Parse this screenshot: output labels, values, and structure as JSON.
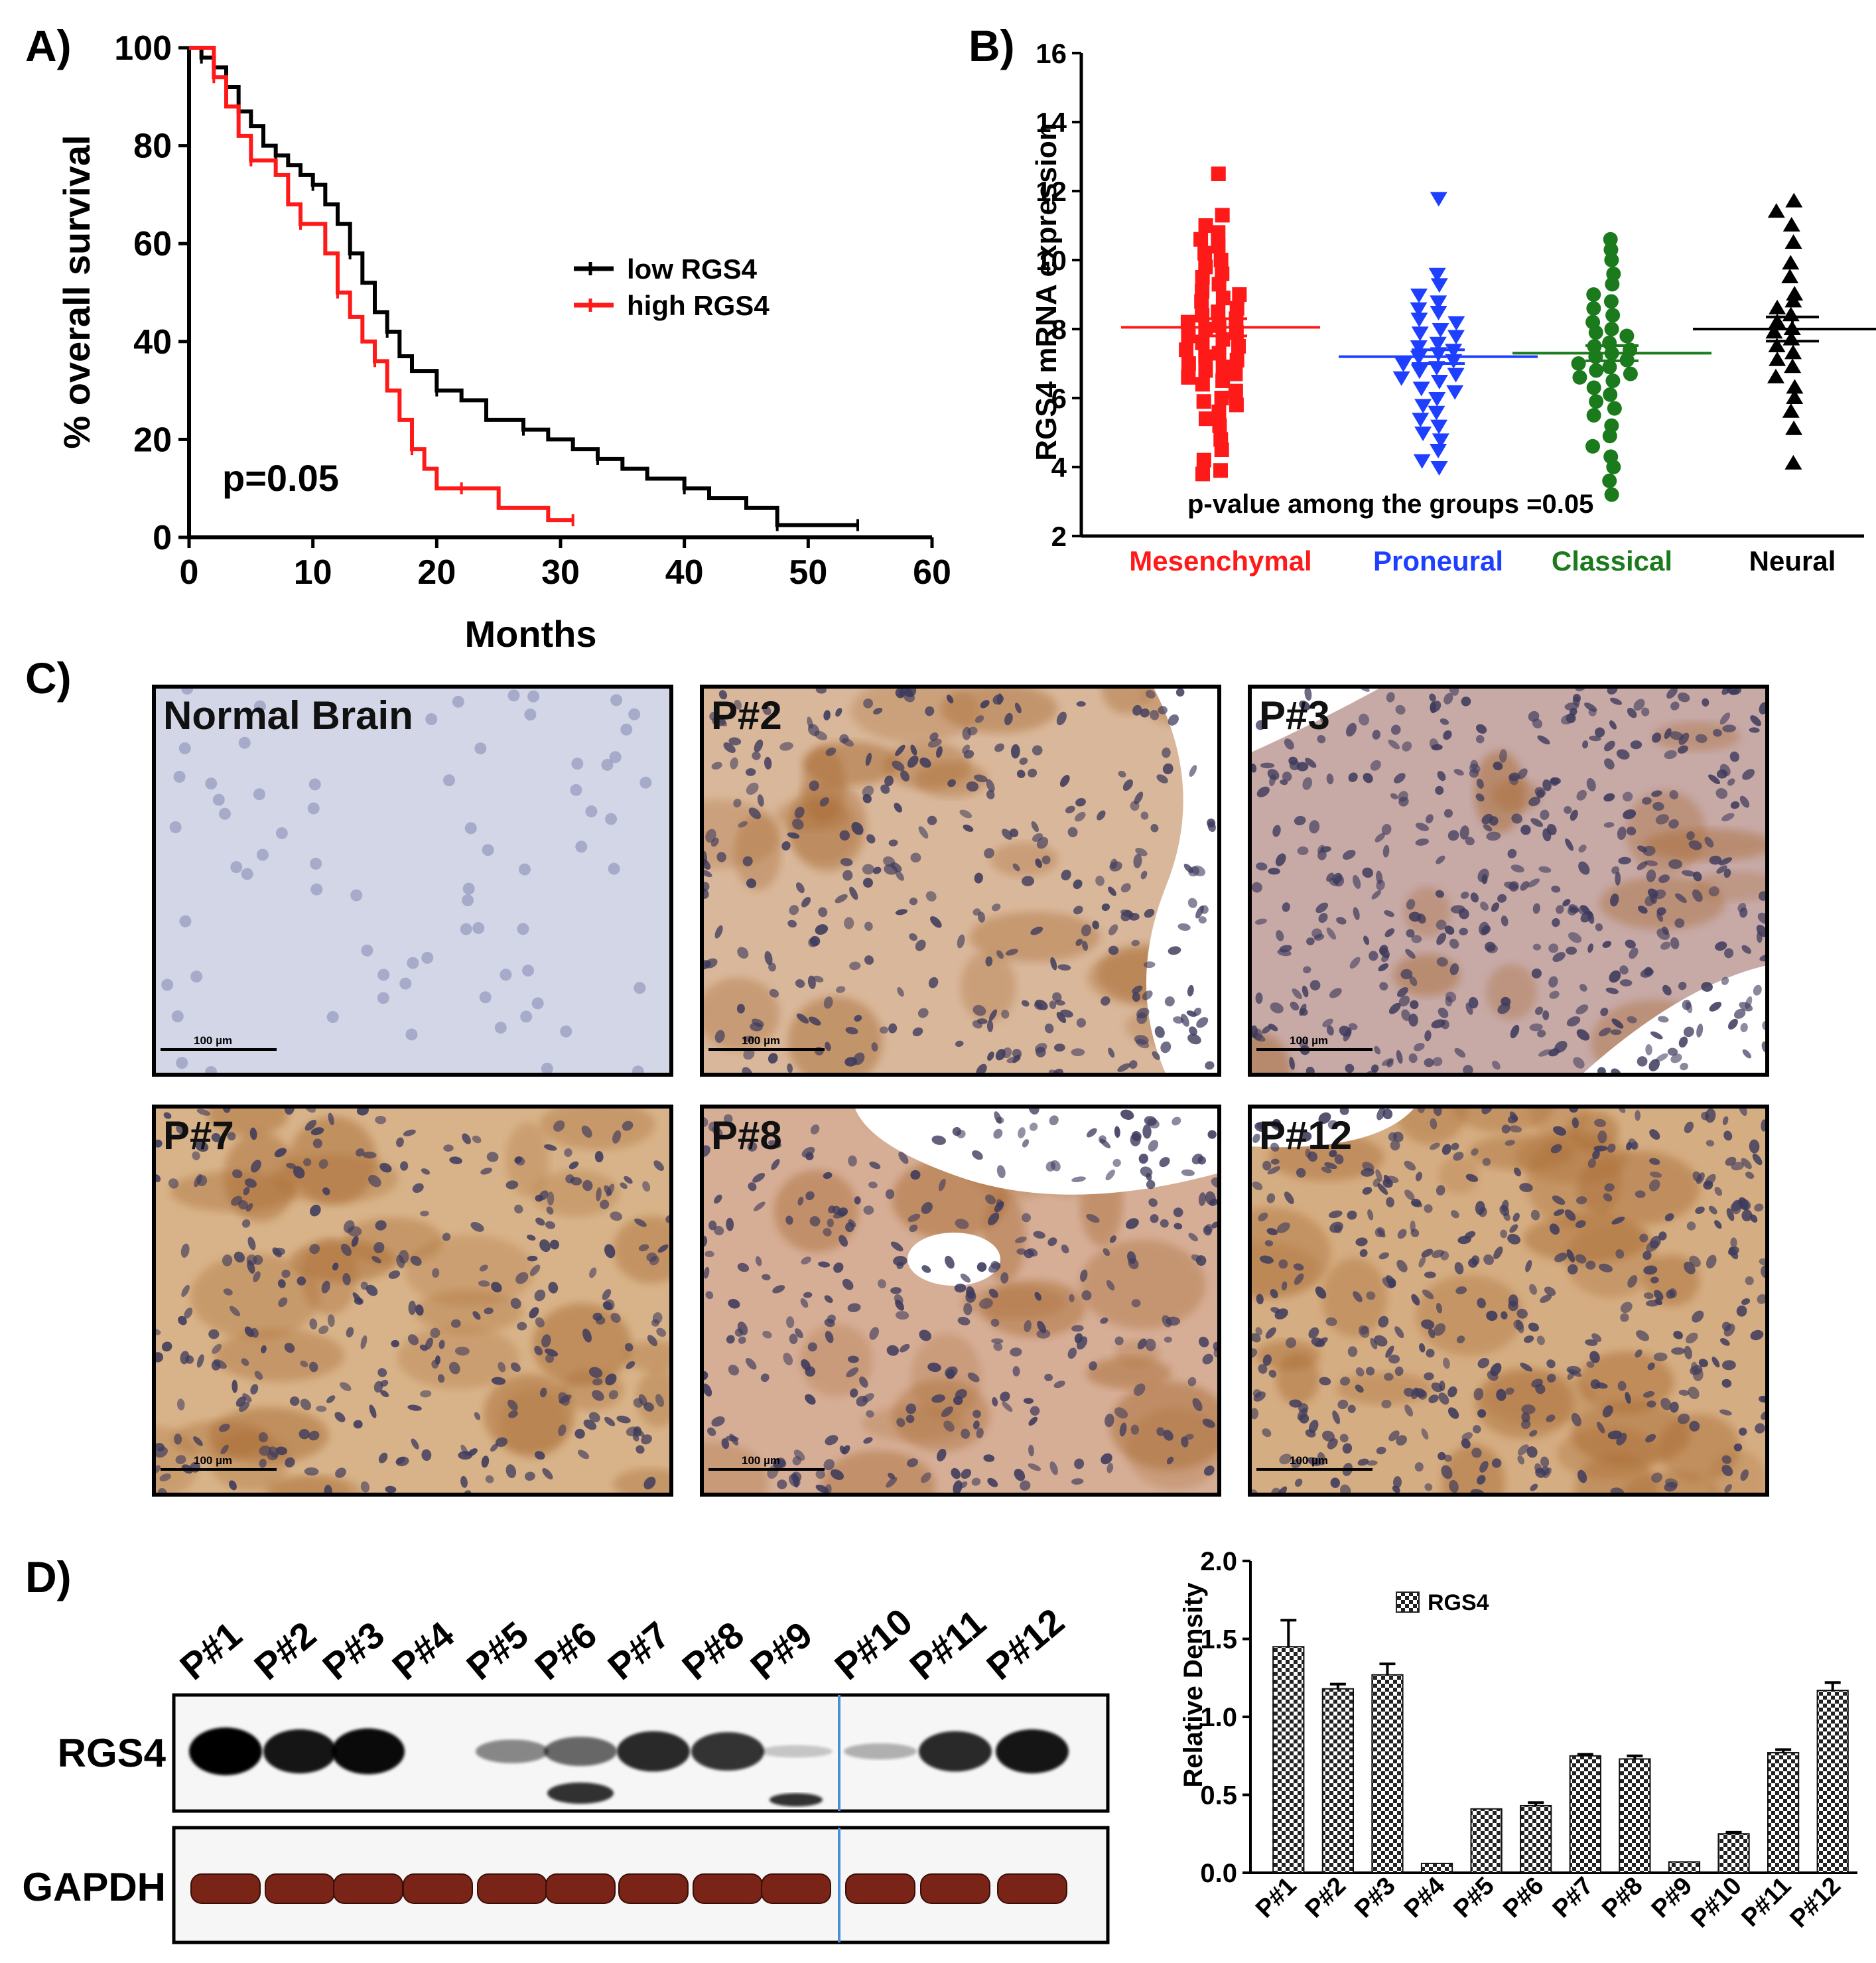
{
  "colors": {
    "low": "#000000",
    "high": "#ff1a1a",
    "mesenchymal": "#ff1a1a",
    "proneural": "#1f3fff",
    "classical": "#1b7a1b",
    "neural": "#000000",
    "stain_brown": "#a86a32",
    "nuclei": "#3d3a5c"
  },
  "chart_data": [
    {
      "panel": "A)",
      "type": "line",
      "subtype": "kaplan-meier",
      "xlabel": "Months",
      "ylabel": "% overall survival",
      "xlim": [
        0,
        60
      ],
      "ylim": [
        0,
        100
      ],
      "xticks": [
        "0",
        "10",
        "20",
        "30",
        "40",
        "50",
        "60"
      ],
      "yticks": [
        "0",
        "20",
        "40",
        "60",
        "80",
        "100"
      ],
      "annotation": "p=0.05",
      "legend_position": "right-middle",
      "series": [
        {
          "name": "low RGS4",
          "color_key": "low",
          "x": [
            0,
            1,
            2,
            3,
            4,
            5,
            6,
            7,
            8,
            9,
            10,
            11,
            12,
            13,
            14,
            15,
            16,
            17,
            18,
            20,
            22,
            24,
            27,
            29,
            31,
            33,
            35,
            37,
            40,
            42,
            45,
            47.5,
            49,
            52,
            54
          ],
          "y": [
            100,
            98,
            96,
            92,
            87,
            84,
            80,
            78,
            76,
            74,
            72,
            68,
            64,
            58,
            52,
            46,
            42,
            37,
            34,
            30,
            28,
            24,
            22,
            20,
            18,
            16,
            14,
            12,
            10,
            8,
            6,
            2.5,
            2.5,
            2.5,
            2.5
          ]
        },
        {
          "name": "high RGS4",
          "color_key": "high",
          "x": [
            0,
            2,
            3,
            4,
            5,
            7,
            8,
            9,
            10,
            11,
            12,
            13,
            14,
            15,
            16,
            17,
            18,
            19,
            20,
            22,
            25,
            29,
            31
          ],
          "y": [
            100,
            94,
            88,
            82,
            77,
            74,
            68,
            64,
            64,
            58,
            50,
            45,
            40,
            36,
            30,
            24,
            18,
            14,
            10,
            10,
            6,
            3.5,
            3.5
          ]
        }
      ]
    },
    {
      "panel": "B)",
      "type": "scatter",
      "ylabel": "RGS4 mRNA expression",
      "ylim": [
        2,
        16
      ],
      "yticks": [
        "2",
        "4",
        "6",
        "8",
        "10",
        "12",
        "14",
        "16"
      ],
      "annotation": "p-value among the groups =0.05",
      "groups": [
        {
          "name": "Mesenchymal",
          "marker": "square",
          "color_key": "mesenchymal",
          "mean": 8.05,
          "sem": 0.25,
          "values": [
            12.5,
            11.3,
            11.0,
            10.8,
            10.6,
            10.4,
            10.2,
            10.0,
            9.8,
            9.6,
            9.5,
            9.3,
            9.1,
            9.0,
            8.9,
            8.8,
            8.6,
            8.5,
            8.4,
            8.3,
            8.2,
            8.1,
            8.0,
            7.9,
            7.8,
            7.7,
            7.6,
            7.5,
            7.4,
            7.3,
            7.2,
            7.1,
            7.0,
            6.9,
            6.8,
            6.7,
            6.6,
            6.5,
            6.4,
            6.2,
            6.0,
            5.9,
            5.8,
            5.6,
            5.4,
            5.2,
            4.8,
            4.5,
            4.2,
            3.9,
            3.8
          ]
        },
        {
          "name": "Proneural",
          "marker": "triangle-down",
          "color_key": "proneural",
          "mean": 7.2,
          "sem": 0.2,
          "values": [
            11.8,
            9.6,
            9.3,
            9.0,
            8.8,
            8.6,
            8.5,
            8.3,
            8.2,
            8.0,
            7.9,
            7.8,
            7.6,
            7.5,
            7.4,
            7.3,
            7.2,
            7.1,
            7.0,
            6.9,
            6.8,
            6.7,
            6.6,
            6.5,
            6.3,
            6.2,
            6.0,
            5.8,
            5.6,
            5.4,
            5.2,
            5.0,
            4.8,
            4.5,
            4.2,
            4.0
          ]
        },
        {
          "name": "Classical",
          "marker": "circle",
          "color_key": "classical",
          "mean": 7.3,
          "sem": 0.22,
          "values": [
            10.6,
            10.3,
            10.0,
            9.6,
            9.3,
            9.0,
            8.8,
            8.6,
            8.4,
            8.2,
            8.0,
            7.9,
            7.8,
            7.6,
            7.5,
            7.4,
            7.3,
            7.2,
            7.1,
            7.0,
            6.9,
            6.8,
            6.7,
            6.6,
            6.5,
            6.3,
            6.1,
            5.9,
            5.7,
            5.5,
            5.2,
            4.9,
            4.6,
            4.3,
            4.0,
            3.6,
            3.2
          ]
        },
        {
          "name": "Neural",
          "marker": "triangle-up",
          "color_key": "neural",
          "mean": 8.0,
          "sem": 0.35,
          "values": [
            11.7,
            11.4,
            11.0,
            10.5,
            9.9,
            9.5,
            9.0,
            8.8,
            8.6,
            8.4,
            8.2,
            8.0,
            7.9,
            7.7,
            7.5,
            7.3,
            7.1,
            6.9,
            6.6,
            6.3,
            6.0,
            5.6,
            5.1,
            4.1
          ]
        }
      ]
    },
    {
      "panel": "D)",
      "type": "bar",
      "ylabel": "Relative Density",
      "ylim": [
        0,
        2.0
      ],
      "yticks": [
        "0.0",
        "0.5",
        "1.0",
        "1.5",
        "2.0"
      ],
      "legend": "RGS4",
      "legend_position": "top-left",
      "categories": [
        "P#1",
        "P#2",
        "P#3",
        "P#4",
        "P#5",
        "P#6",
        "P#7",
        "P#8",
        "P#9",
        "P#10",
        "P#11",
        "P#12"
      ],
      "values": [
        1.45,
        1.18,
        1.27,
        0.06,
        0.41,
        0.43,
        0.75,
        0.73,
        0.07,
        0.25,
        0.77,
        1.17
      ],
      "errors": [
        0.17,
        0.03,
        0.07,
        0.0,
        0.0,
        0.02,
        0.01,
        0.02,
        0.0,
        0.01,
        0.02,
        0.05
      ]
    }
  ],
  "panel_c": {
    "label": "C)",
    "scale_bar": "100 µm",
    "images": [
      {
        "label": "Normal Brain",
        "stain": "none",
        "tone": "#d3d6e6"
      },
      {
        "label": "P#2",
        "stain": "moderate",
        "tone": "#d9b79a"
      },
      {
        "label": "P#3",
        "stain": "weak",
        "tone": "#c7a9a6"
      },
      {
        "label": "P#7",
        "stain": "strong",
        "tone": "#d8b389"
      },
      {
        "label": "P#8",
        "stain": "moderate",
        "tone": "#d6ae96"
      },
      {
        "label": "P#12",
        "stain": "strong",
        "tone": "#d5ad82"
      }
    ]
  },
  "western_blot": {
    "label": "D)",
    "lanes": [
      "P#1",
      "P#2",
      "P#3",
      "P#4",
      "P#5",
      "P#6",
      "P#7",
      "P#8",
      "P#9",
      "P#10",
      "P#11",
      "P#12"
    ],
    "rows": [
      {
        "name": "RGS4",
        "band_intensity": [
          1.0,
          0.9,
          0.95,
          0.0,
          0.35,
          0.5,
          0.8,
          0.75,
          0.05,
          0.15,
          0.8,
          0.9
        ]
      },
      {
        "name": "GAPDH",
        "band_intensity": [
          1,
          1,
          1,
          1,
          1,
          1,
          1,
          1,
          1,
          1,
          1,
          1
        ]
      }
    ]
  }
}
